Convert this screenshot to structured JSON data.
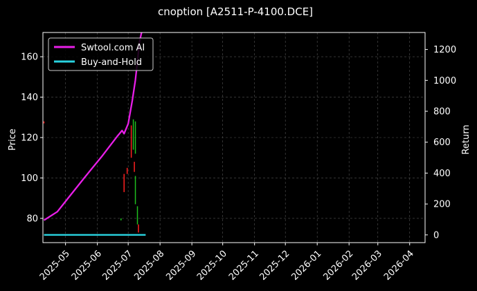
{
  "chart_data": {
    "type": "line",
    "title": "cnoption [A2511-P-4100.DCE]",
    "ylabel": "Price",
    "y2label": "Return",
    "ylim": [
      68,
      172
    ],
    "y2lim": [
      -50,
      1310
    ],
    "xlim": [
      "2025-04-09",
      "2026-04-16"
    ],
    "grid": true,
    "legend_position": "top-left",
    "x_ticks": [
      "2025-05",
      "2025-06",
      "2025-07",
      "2025-08",
      "2025-09",
      "2025-10",
      "2025-11",
      "2025-12",
      "2026-01",
      "2026-02",
      "2026-03",
      "2026-04"
    ],
    "x_tick_dates": [
      "2025-05-01",
      "2025-06-01",
      "2025-07-01",
      "2025-08-01",
      "2025-09-01",
      "2025-10-01",
      "2025-11-01",
      "2025-12-01",
      "2026-01-01",
      "2026-02-01",
      "2026-03-01",
      "2026-04-01"
    ],
    "y_ticks": [
      80,
      100,
      120,
      140,
      160
    ],
    "y2_ticks": [
      0,
      200,
      400,
      600,
      800,
      1000,
      1200
    ],
    "series": [
      {
        "name": "Swtool.com AI",
        "color": "#e81ee8",
        "axis": "right",
        "points": [
          [
            "2025-04-10",
            95
          ],
          [
            "2025-04-23",
            150
          ],
          [
            "2025-05-05",
            250
          ],
          [
            "2025-05-20",
            375
          ],
          [
            "2025-06-05",
            505
          ],
          [
            "2025-06-20",
            635
          ],
          [
            "2025-06-25",
            675
          ],
          [
            "2025-06-27",
            655
          ],
          [
            "2025-07-01",
            720
          ],
          [
            "2025-07-05",
            870
          ],
          [
            "2025-07-08",
            1000
          ],
          [
            "2025-07-10",
            1120
          ],
          [
            "2025-07-12",
            1250
          ],
          [
            "2025-07-14",
            1310
          ]
        ]
      },
      {
        "name": "Buy-and-Hold",
        "color": "#29d3e0",
        "axis": "right",
        "points": [
          [
            "2025-04-10",
            0
          ],
          [
            "2025-07-18",
            0
          ]
        ]
      }
    ],
    "candles": [
      {
        "date": "2025-04-10",
        "low": 127,
        "high": 128,
        "color": "#ff2020"
      },
      {
        "date": "2025-06-24",
        "low": 79,
        "high": 80,
        "color": "#1fbf1f"
      },
      {
        "date": "2025-06-27",
        "low": 93,
        "high": 102,
        "color": "#ff2020"
      },
      {
        "date": "2025-06-30",
        "low": 102,
        "high": 105,
        "color": "#ff2020"
      },
      {
        "date": "2025-07-04",
        "low": 110,
        "high": 126,
        "color": "#ff2020"
      },
      {
        "date": "2025-07-06",
        "low": 114,
        "high": 129,
        "color": "#1fbf1f"
      },
      {
        "date": "2025-07-07",
        "low": 103,
        "high": 108,
        "color": "#ff2020"
      },
      {
        "date": "2025-07-08",
        "low": 112,
        "high": 128,
        "color": "#1fbf1f"
      },
      {
        "date": "2025-07-08",
        "low": 87,
        "high": 101,
        "color": "#1fbf1f"
      },
      {
        "date": "2025-07-10",
        "low": 77,
        "high": 86,
        "color": "#1fbf1f"
      },
      {
        "date": "2025-07-11",
        "low": 73,
        "high": 77,
        "color": "#ff2020"
      }
    ],
    "grid_color": "#555555",
    "axis_color": "#ffffff",
    "background": "#000000"
  }
}
